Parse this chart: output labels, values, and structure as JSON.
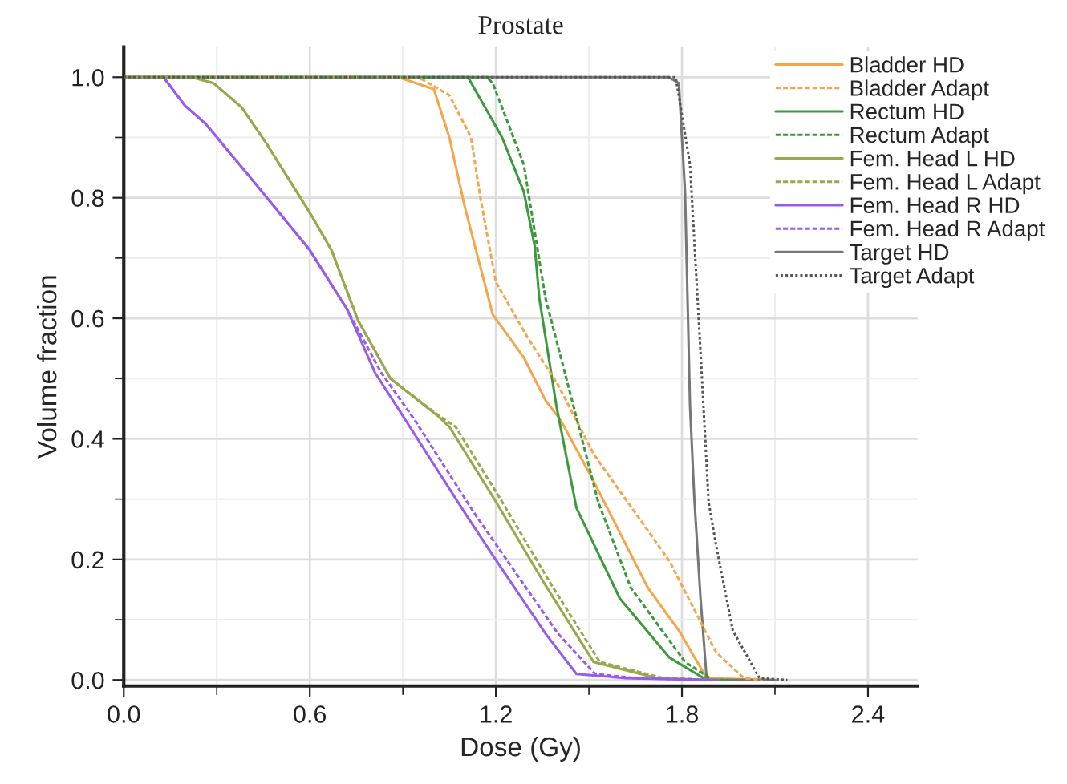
{
  "chart_data": {
    "type": "line",
    "title": "Prostate",
    "xlabel": "Dose (Gy)",
    "ylabel": "Volume fraction",
    "xlim": [
      0,
      2.56
    ],
    "ylim": [
      -0.01,
      1.05
    ],
    "xticks": [
      {
        "value": 0,
        "label": "0.0"
      },
      0.6,
      1.2,
      1.8,
      2.4
    ],
    "yticks": [
      {
        "value": 0,
        "label": "0.0"
      },
      0.2,
      0.4,
      0.6,
      0.8,
      {
        "value": 1,
        "label": "1.0"
      }
    ],
    "grid": true,
    "legend": "top right",
    "marker": "none",
    "series": [
      {
        "name": "Bladder HD",
        "color": "#f5a54a",
        "line_style": "solid",
        "x": [
          0,
          0.885,
          1.0,
          1.05,
          1.1,
          1.19,
          1.29,
          1.36,
          1.41,
          1.515,
          1.69,
          1.79,
          1.88,
          2.1
        ],
        "values": [
          1.0,
          1.0,
          0.98,
          0.9,
          0.784,
          0.606,
          0.535,
          0.464,
          0.43,
          0.33,
          0.153,
          0.082,
          0.003,
          0.0
        ]
      },
      {
        "name": "Bladder Adapt",
        "color": "#f5a54a",
        "line_style": "dashed",
        "x": [
          0,
          0.95,
          1.05,
          1.12,
          1.15,
          1.2,
          1.3,
          1.4,
          1.515,
          1.76,
          1.91,
          2.0,
          2.06
        ],
        "values": [
          1.0,
          1.0,
          0.97,
          0.9,
          0.8,
          0.66,
          0.57,
          0.49,
          0.375,
          0.197,
          0.046,
          0.003,
          0.0
        ]
      },
      {
        "name": "Rectum HD",
        "color": "#3c9a3c",
        "line_style": "solid",
        "x": [
          0,
          1.11,
          1.22,
          1.29,
          1.325,
          1.34,
          1.395,
          1.46,
          1.6,
          1.76,
          1.88,
          2.1
        ],
        "values": [
          1.0,
          1.0,
          0.9,
          0.81,
          0.72,
          0.633,
          0.455,
          0.285,
          0.135,
          0.037,
          0.0,
          0.0
        ]
      },
      {
        "name": "Rectum Adapt",
        "color": "#3c9a3c",
        "line_style": "dashed",
        "x": [
          0,
          1.17,
          1.19,
          1.29,
          1.36,
          1.45,
          1.53,
          1.635,
          1.81,
          1.9,
          1.95
        ],
        "values": [
          1.0,
          1.0,
          0.99,
          0.855,
          0.633,
          0.455,
          0.295,
          0.153,
          0.03,
          0.0,
          0.0
        ]
      },
      {
        "name": "Fem. Head L HD",
        "color": "#98a84c",
        "line_style": "solid",
        "x": [
          0,
          0.22,
          0.29,
          0.38,
          0.46,
          0.6,
          0.67,
          0.755,
          0.86,
          1.015,
          1.05,
          1.195,
          1.36,
          1.515,
          1.72,
          1.9
        ],
        "values": [
          1.0,
          1.0,
          0.99,
          0.95,
          0.89,
          0.775,
          0.713,
          0.597,
          0.5,
          0.437,
          0.42,
          0.3,
          0.157,
          0.03,
          0.003,
          0.0
        ]
      },
      {
        "name": "Fem. Head L Adapt",
        "color": "#98a84c",
        "line_style": "dashed",
        "x": [
          0,
          0.22,
          0.29,
          0.38,
          0.46,
          0.6,
          0.67,
          0.755,
          0.86,
          1.02,
          1.07,
          1.215,
          1.38,
          1.535,
          1.74,
          1.92
        ],
        "values": [
          1.0,
          1.0,
          0.99,
          0.95,
          0.89,
          0.775,
          0.713,
          0.597,
          0.5,
          0.437,
          0.42,
          0.3,
          0.157,
          0.03,
          0.003,
          0.0
        ]
      },
      {
        "name": "Fem. Head R HD",
        "color": "#9a5af0",
        "line_style": "solid",
        "x": [
          0.128,
          0.197,
          0.265,
          0.43,
          0.6,
          0.72,
          0.81,
          0.91,
          1.1,
          1.195,
          1.36,
          1.46,
          1.62,
          1.88
        ],
        "values": [
          1.0,
          0.953,
          0.922,
          0.82,
          0.713,
          0.615,
          0.51,
          0.43,
          0.277,
          0.203,
          0.077,
          0.01,
          0.003,
          0.0
        ]
      },
      {
        "name": "Fem. Head R Adapt",
        "color": "#9a5af0",
        "line_style": "dashed",
        "x": [
          0.128,
          0.197,
          0.265,
          0.43,
          0.6,
          0.72,
          0.83,
          0.94,
          1.13,
          1.23,
          1.4,
          1.52,
          1.65,
          1.92
        ],
        "values": [
          1.0,
          0.953,
          0.922,
          0.82,
          0.713,
          0.615,
          0.51,
          0.43,
          0.277,
          0.203,
          0.077,
          0.01,
          0.003,
          0.0
        ]
      },
      {
        "name": "Target HD",
        "color": "#777777",
        "line_style": "solid",
        "x": [
          0,
          1.757,
          1.79,
          1.81,
          1.826,
          1.84,
          1.86,
          1.88,
          2.1
        ],
        "values": [
          1.0,
          1.0,
          0.99,
          0.81,
          0.455,
          0.3,
          0.135,
          0.0,
          0.0
        ]
      },
      {
        "name": "Target Adapt",
        "color": "#555555",
        "line_style": "dotted",
        "x": [
          0,
          1.78,
          1.826,
          1.86,
          1.886,
          1.91,
          1.964,
          2.05,
          2.14
        ],
        "values": [
          1.0,
          1.0,
          0.855,
          0.544,
          0.295,
          0.224,
          0.082,
          0.003,
          0.0
        ]
      }
    ]
  }
}
